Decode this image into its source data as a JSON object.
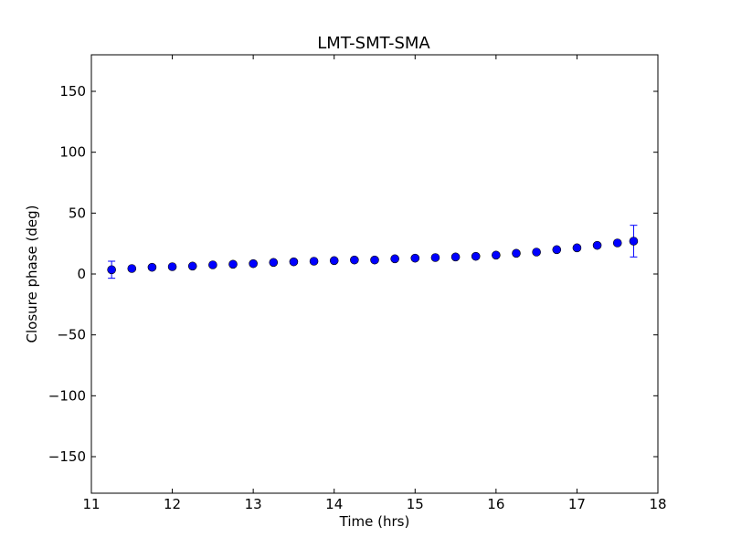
{
  "chart_data": {
    "type": "scatter",
    "title": "LMT-SMT-SMA",
    "xlabel": "Time (hrs)",
    "ylabel": "Closure phase (deg)",
    "xlim": [
      11,
      18
    ],
    "ylim": [
      -180,
      180
    ],
    "xticks": [
      "11",
      "12",
      "13",
      "14",
      "15",
      "16",
      "17",
      "18"
    ],
    "xtick_values": [
      11,
      12,
      13,
      14,
      15,
      16,
      17,
      18
    ],
    "yticks": [
      "150",
      "100",
      "50",
      "0",
      "−50",
      "−100",
      "−150"
    ],
    "ytick_values": [
      150,
      100,
      50,
      0,
      -50,
      -100,
      -150
    ],
    "grid": false,
    "colors": {
      "marker": "#0000ff",
      "errorbar": "#0000ff"
    },
    "series": [
      {
        "points": [
          {
            "x": 11.25,
            "y": 3.5,
            "yerr": 7
          },
          {
            "x": 11.5,
            "y": 4.5
          },
          {
            "x": 11.75,
            "y": 5.5
          },
          {
            "x": 12.0,
            "y": 6
          },
          {
            "x": 12.25,
            "y": 6.5
          },
          {
            "x": 12.5,
            "y": 7.5
          },
          {
            "x": 12.75,
            "y": 8
          },
          {
            "x": 13.0,
            "y": 8.5
          },
          {
            "x": 13.25,
            "y": 9.5
          },
          {
            "x": 13.5,
            "y": 10
          },
          {
            "x": 13.75,
            "y": 10.5
          },
          {
            "x": 14.0,
            "y": 11
          },
          {
            "x": 14.25,
            "y": 11.5
          },
          {
            "x": 14.5,
            "y": 11.5
          },
          {
            "x": 14.75,
            "y": 12.5
          },
          {
            "x": 15.0,
            "y": 13
          },
          {
            "x": 15.25,
            "y": 13.5
          },
          {
            "x": 15.5,
            "y": 14
          },
          {
            "x": 15.75,
            "y": 14.5
          },
          {
            "x": 16.0,
            "y": 15.5
          },
          {
            "x": 16.25,
            "y": 17
          },
          {
            "x": 16.5,
            "y": 18
          },
          {
            "x": 16.75,
            "y": 20
          },
          {
            "x": 17.0,
            "y": 21.5
          },
          {
            "x": 17.25,
            "y": 23.5
          },
          {
            "x": 17.5,
            "y": 25.5
          },
          {
            "x": 17.7,
            "y": 27,
            "yerr": 13
          }
        ]
      }
    ]
  }
}
